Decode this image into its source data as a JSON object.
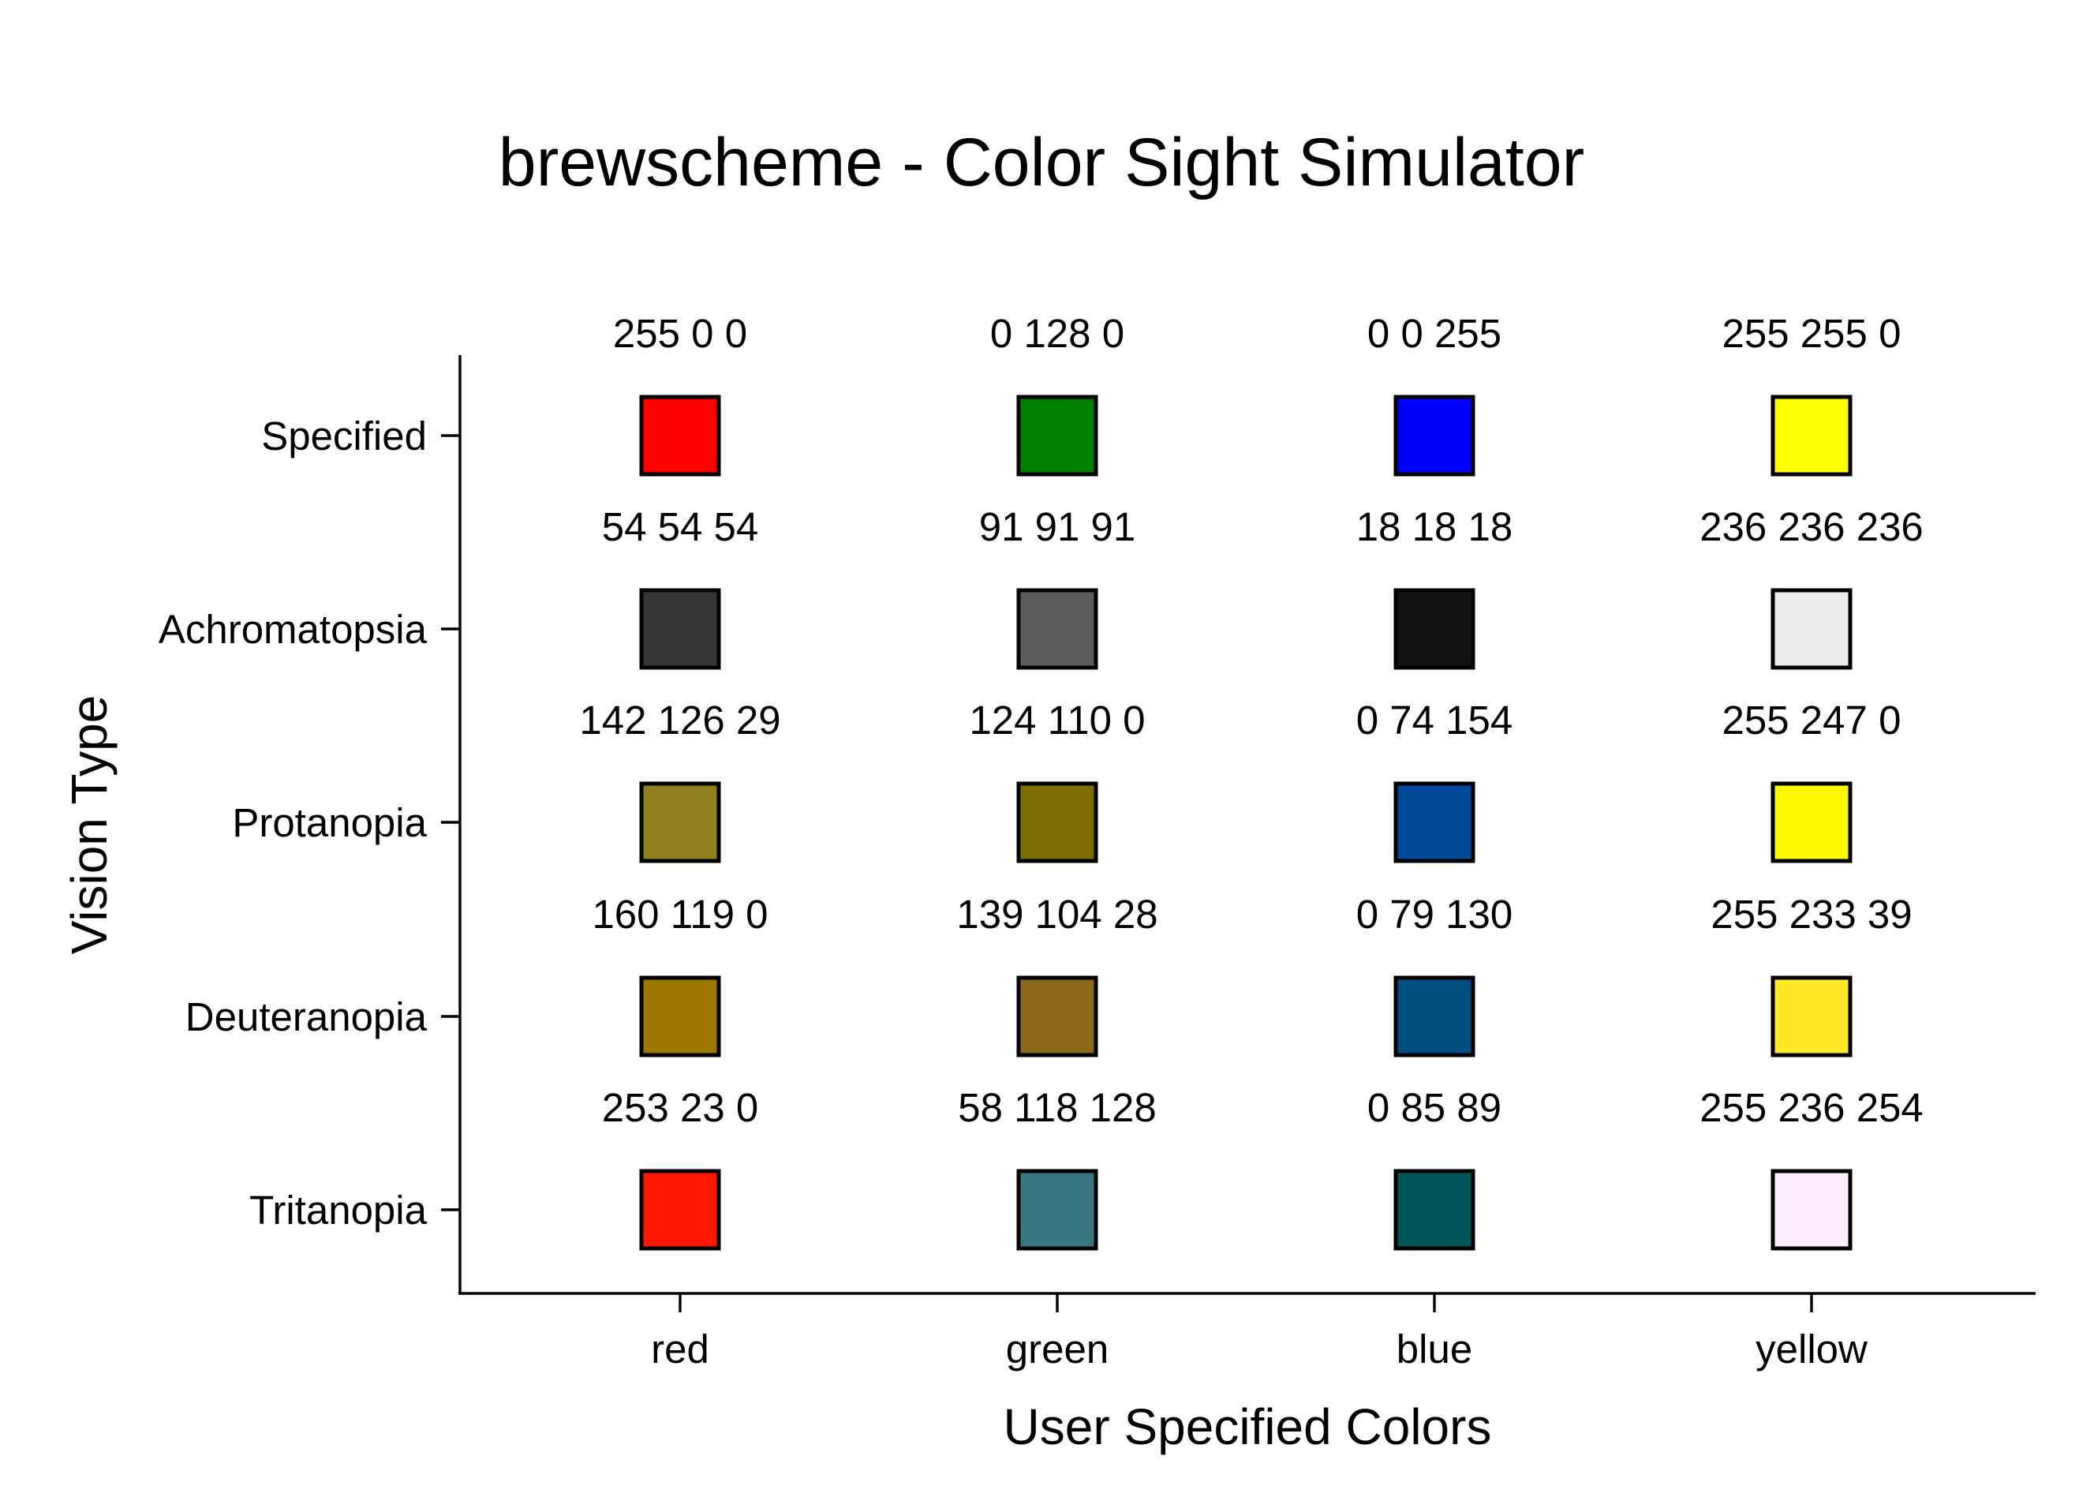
{
  "chart_data": {
    "type": "heatmap",
    "title": "brewscheme - Color Sight Simulator",
    "xlabel": "User Specified Colors",
    "ylabel": "Vision Type",
    "categories": [
      "red",
      "green",
      "blue",
      "yellow"
    ],
    "rows": [
      "Specified",
      "Achromatopsia",
      "Protanopia",
      "Deuteranopia",
      "Tritanopia"
    ],
    "cells": [
      [
        {
          "label": "255 0 0",
          "color": "#ff0000"
        },
        {
          "label": "0 128 0",
          "color": "#008000"
        },
        {
          "label": "0 0 255",
          "color": "#0000ff"
        },
        {
          "label": "255 255 0",
          "color": "#ffff00"
        }
      ],
      [
        {
          "label": "54 54 54",
          "color": "#363636"
        },
        {
          "label": "91 91 91",
          "color": "#5b5b5b"
        },
        {
          "label": "18 18 18",
          "color": "#121212"
        },
        {
          "label": "236 236 236",
          "color": "#ececec"
        }
      ],
      [
        {
          "label": "142 126 29",
          "color": "#8e7e1d"
        },
        {
          "label": "124 110 0",
          "color": "#7c6e00"
        },
        {
          "label": "0 74 154",
          "color": "#004a9a"
        },
        {
          "label": "255 247 0",
          "color": "#fff700"
        }
      ],
      [
        {
          "label": "160 119 0",
          "color": "#a07700"
        },
        {
          "label": "139 104 28",
          "color": "#8b681c"
        },
        {
          "label": "0 79 130",
          "color": "#004f82"
        },
        {
          "label": "255 233 39",
          "color": "#ffe927"
        }
      ],
      [
        {
          "label": "253 23 0",
          "color": "#fd1700"
        },
        {
          "label": "58 118 128",
          "color": "#3a7680"
        },
        {
          "label": "0 85 89",
          "color": "#005559"
        },
        {
          "label": "255 236 254",
          "color": "#ffecfe"
        }
      ]
    ],
    "grid": false,
    "legend": "none"
  }
}
